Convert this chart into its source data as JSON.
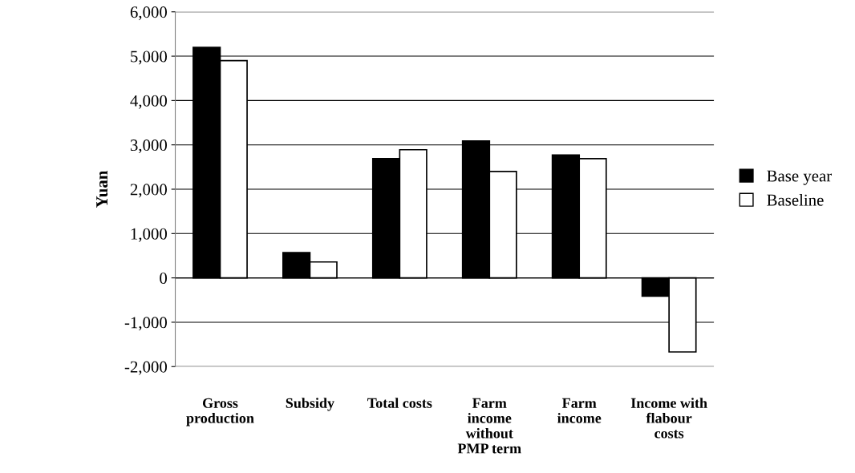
{
  "chart_data": {
    "type": "bar",
    "ylabel": "Yuan",
    "categories": [
      "Gross\nproduction",
      "Subsidy",
      "Total costs",
      "Farm\nincome\nwithout\nPMP term",
      "Farm\nincome",
      "Income with\nflabour\ncosts"
    ],
    "series": [
      {
        "name": "Base year",
        "color": "#000000",
        "values": [
          5200,
          570,
          2690,
          3090,
          2770,
          -410
        ]
      },
      {
        "name": "Baseline",
        "color": "#ffffff",
        "values": [
          4900,
          360,
          2890,
          2400,
          2690,
          -1670
        ]
      }
    ],
    "ylim": [
      -2000,
      6000
    ],
    "yticks": [
      {
        "value": -2000,
        "label": "-2,000"
      },
      {
        "value": -1000,
        "label": "-1,000"
      },
      0,
      {
        "value": 1000,
        "label": "1,000"
      },
      {
        "value": 2000,
        "label": "2,000"
      },
      {
        "value": 3000,
        "label": "3,000"
      },
      {
        "value": 4000,
        "label": "4,000"
      },
      {
        "value": 5000,
        "label": "5,000"
      },
      {
        "value": 6000,
        "label": "6,000"
      }
    ],
    "grid": "y",
    "legend": "right"
  }
}
